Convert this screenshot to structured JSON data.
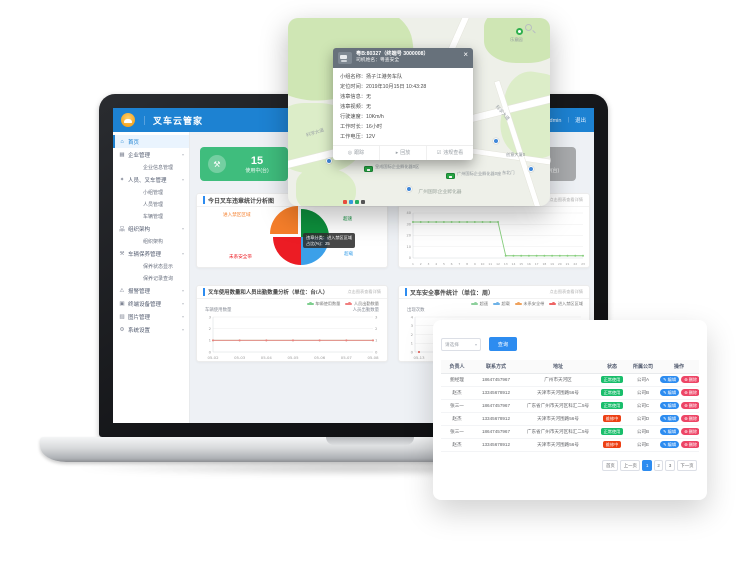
{
  "app": {
    "topbar": {
      "title": "叉车云管家",
      "separator": "｜",
      "user_text": "欢迎您，admin",
      "divider": "｜",
      "logout": "退出"
    },
    "sidebar": {
      "items": [
        {
          "label": "首页",
          "icon": "home-icon",
          "glyph": "⌂",
          "level": 0,
          "active": true
        },
        {
          "label": "企业管理",
          "icon": "building-icon",
          "glyph": "▦",
          "level": 0,
          "chevron": true
        },
        {
          "label": "企业信息管理",
          "level": 1
        },
        {
          "label": "人员、叉车管理",
          "icon": "people-icon",
          "glyph": "✦",
          "level": 0,
          "chevron": true
        },
        {
          "label": "小组管理",
          "level": 1
        },
        {
          "label": "人员管理",
          "level": 1
        },
        {
          "label": "车辆管理",
          "level": 1
        },
        {
          "label": "组织架构",
          "icon": "org-chart-icon",
          "glyph": "品",
          "level": 0,
          "chevron": true
        },
        {
          "label": "组织架构",
          "level": 1
        },
        {
          "label": "车辆保养管理",
          "icon": "wrench-icon",
          "glyph": "⚒",
          "level": 0,
          "chevron": true
        },
        {
          "label": "保养状态显示",
          "level": 1
        },
        {
          "label": "保养记录查询",
          "level": 1
        },
        {
          "label": "报警管理",
          "icon": "alarm-icon",
          "glyph": "⚠",
          "level": 0,
          "chevron": true
        },
        {
          "label": "终端设备管理",
          "icon": "device-icon",
          "glyph": "▣",
          "level": 0,
          "chevron": true
        },
        {
          "label": "图片管理",
          "icon": "image-icon",
          "glyph": "▨",
          "level": 0,
          "chevron": true
        },
        {
          "label": "系统设置",
          "icon": "gear-icon",
          "glyph": "⚙",
          "level": 0,
          "chevron": true
        }
      ]
    },
    "stat_cards": [
      {
        "value": "15",
        "label": "使用中(台)",
        "color": "#3fbd7d"
      },
      {
        "value": "",
        "label": "",
        "color": "#c2c6ca"
      },
      {
        "value": "",
        "label": "",
        "color": "#c2c6ca"
      },
      {
        "value": "10",
        "label": "未使用中(台)",
        "color": "#a9abad"
      }
    ],
    "panels": {
      "pie": {
        "title": "今日叉车违章统计分析图",
        "hint": "点击图表查看详情"
      },
      "online": {
        "hint": "点击图表查看详情"
      },
      "usage": {
        "title": "叉车使用数量和人员出勤数量分析（单位：台/人）",
        "hint": "点击图表查看详情",
        "left_axis": "车辆使用数量",
        "right_axis": "人员出勤数量"
      },
      "safety": {
        "title": "叉车安全事件统计（单位：周）",
        "hint": "点击图表查看详情",
        "left_axis": "出现次数"
      }
    }
  },
  "map_overlay": {
    "popup": {
      "plate_line": "粤B:80327（终端号 3000008）",
      "driver_line": "司机姓名：粤查安全",
      "close": "×",
      "rows": [
        {
          "label": "小组名称",
          "value": "扬子江港务车队"
        },
        {
          "label": "定位时间",
          "value": "2019年10月15日 10:43:28"
        },
        {
          "label": "违章信息",
          "value": "无"
        },
        {
          "label": "违章视频",
          "value": "无"
        },
        {
          "label": "行驶速度",
          "value": "10Km/h"
        },
        {
          "label": "工作时长",
          "value": "16小时"
        },
        {
          "label": "工作电压",
          "value": "12V"
        }
      ],
      "actions": [
        {
          "icon": "track-icon",
          "glyph": "◎",
          "label": "跟踪"
        },
        {
          "icon": "playback-icon",
          "glyph": "▸",
          "label": "回放"
        },
        {
          "icon": "violation-view-icon",
          "glyph": "☑",
          "label": "违规查看"
        }
      ]
    },
    "labels": {
      "road1": "科学大道",
      "road2": "科学大道",
      "truck_poi_1": "皇成国际企业孵化器0区",
      "truck_poi_2": "广州国际企业孵化器0座",
      "area": "广州国际企业孵化器",
      "gate": "东北门",
      "building": "创意大厦0",
      "park_poi": "乐意园"
    }
  },
  "table_card": {
    "select_placeholder": "请选择",
    "search_button": "查询",
    "columns": [
      "负责人",
      "联系方式",
      "地址",
      "状态",
      "所属公司",
      "操作"
    ],
    "rows": [
      {
        "name": "鲍经理",
        "phone": "18647457967",
        "address": "广州市天河区",
        "status": "正常使用",
        "status_type": "ok",
        "company": "公司A"
      },
      {
        "name": "赵杰",
        "phone": "13345678912",
        "address": "天津市天河围路56号",
        "status": "正常使用",
        "status_type": "ok",
        "company": "公司B"
      },
      {
        "name": "张三一",
        "phone": "18647457967",
        "address": "广东省广州市天河区科汇二5号",
        "status": "正常使用",
        "status_type": "ok",
        "company": "公司C"
      },
      {
        "name": "赵杰",
        "phone": "13345678912",
        "address": "天津市天河围路56号",
        "status": "维修中",
        "status_type": "repair",
        "company": "公司D"
      },
      {
        "name": "张三一",
        "phone": "18647457967",
        "address": "广东省广州市天河区科汇二5号",
        "status": "正常使用",
        "status_type": "ok",
        "company": "公司B"
      },
      {
        "name": "赵杰",
        "phone": "13345678912",
        "address": "天津市天河围路56号",
        "status": "维修中",
        "status_type": "repair",
        "company": "公司E"
      }
    ],
    "actions": {
      "edit": "编辑",
      "delete": "删除"
    },
    "pagination": [
      "首页",
      "上一页",
      "1",
      "2",
      "3",
      "下一页"
    ],
    "pagination_active": "1"
  },
  "chart_data": [
    {
      "id": "violations_pie",
      "type": "pie",
      "title": "今日叉车违章统计分析图",
      "labels": [
        "超速",
        "超载",
        "未系安全带",
        "进入禁区区域"
      ],
      "values": [
        25,
        25,
        25,
        25
      ],
      "colors": [
        "#0d8f3c",
        "#3ba0e9",
        "#ec1c24",
        "#f57e2a"
      ],
      "exploded": "进入禁区区域",
      "tooltip": [
        "违章分类：进入禁区区域",
        "占比(%)：25"
      ]
    },
    {
      "id": "online_line",
      "type": "line",
      "x": [
        1,
        2,
        3,
        4,
        5,
        6,
        7,
        8,
        9,
        10,
        11,
        12,
        13,
        14,
        15,
        16,
        17,
        18,
        19,
        20,
        21,
        22,
        23
      ],
      "series": [
        {
          "name": "",
          "color": "#86ce7d",
          "values": [
            32,
            32,
            32,
            32,
            32,
            32,
            32,
            32,
            32,
            32,
            32,
            32,
            2,
            2,
            2,
            2,
            2,
            2,
            2,
            2,
            2,
            2,
            2
          ]
        }
      ],
      "ylim": [
        0,
        40
      ],
      "yticks": [
        0,
        10,
        20,
        30,
        40
      ],
      "grid": true,
      "legend_position": "none"
    },
    {
      "id": "usage_line",
      "type": "line",
      "title": "叉车使用数量和人员出勤数量分析（单位：台/人）",
      "categories": [
        "05-02",
        "05-03",
        "05-04",
        "05-05",
        "05-06",
        "05-07",
        "05-08"
      ],
      "series": [
        {
          "name": "车辆使用数量",
          "color": "#7ecf8f",
          "values": [
            1,
            1,
            1,
            1,
            1,
            1,
            1
          ]
        },
        {
          "name": "人员出勤数量",
          "color": "#f07f7f",
          "values": [
            1,
            1,
            1,
            1,
            1,
            1,
            1
          ]
        }
      ],
      "ylim": [
        0,
        3
      ],
      "yticks": [
        0,
        1,
        2,
        3
      ],
      "grid": true,
      "legend_position": "top-right",
      "ylabel_left": "车辆使用数量",
      "ylabel_right": "人员出勤数量"
    },
    {
      "id": "safety_line",
      "type": "line",
      "title": "叉车安全事件统计（单位：周）",
      "categories": [
        "05-13"
      ],
      "series": [
        {
          "name": "超速",
          "color": "#8fd19e",
          "values": [
            0
          ]
        },
        {
          "name": "超载",
          "color": "#6fb3e8",
          "values": [
            0
          ]
        },
        {
          "name": "未系安全带",
          "color": "#f0a35e",
          "values": [
            0
          ]
        },
        {
          "name": "进入禁区区域",
          "color": "#ef6666",
          "values": [
            0
          ]
        }
      ],
      "ylim": [
        0,
        4
      ],
      "yticks": [
        0,
        1,
        2,
        3,
        4
      ],
      "grid": true,
      "legend_position": "top-right",
      "ylabel_left": "出现次数"
    }
  ]
}
